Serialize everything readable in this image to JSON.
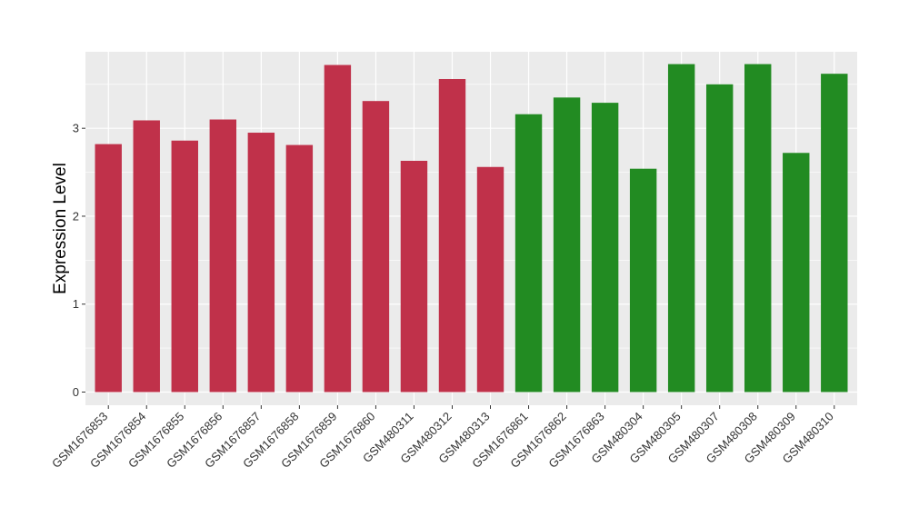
{
  "chart_data": {
    "type": "bar",
    "title": "",
    "xlabel": "",
    "ylabel": "Expression Level",
    "ylim": [
      -0.15,
      3.87
    ],
    "yticks": [
      0,
      1,
      2,
      3
    ],
    "grid": true,
    "legend": "none",
    "categories": [
      "GSM1676853",
      "GSM1676854",
      "GSM1676855",
      "GSM1676856",
      "GSM1676857",
      "GSM1676858",
      "GSM1676859",
      "GSM1676860",
      "GSM480311",
      "GSM480312",
      "GSM480313",
      "GSM1676861",
      "GSM1676862",
      "GSM1676863",
      "GSM480304",
      "GSM480305",
      "GSM480307",
      "GSM480308",
      "GSM480309",
      "GSM480310"
    ],
    "values": [
      2.82,
      3.09,
      2.86,
      3.1,
      2.95,
      2.81,
      3.72,
      3.31,
      2.63,
      3.56,
      2.56,
      3.16,
      3.35,
      3.29,
      2.54,
      3.73,
      3.5,
      3.73,
      2.72,
      3.62
    ],
    "bar_colors": [
      "#c0314a",
      "#c0314a",
      "#c0314a",
      "#c0314a",
      "#c0314a",
      "#c0314a",
      "#c0314a",
      "#c0314a",
      "#c0314a",
      "#c0314a",
      "#c0314a",
      "#228b22",
      "#228b22",
      "#228b22",
      "#228b22",
      "#228b22",
      "#228b22",
      "#228b22",
      "#228b22",
      "#228b22"
    ],
    "panel_color": "#ebebeb",
    "grid_color": "#ffffff"
  }
}
